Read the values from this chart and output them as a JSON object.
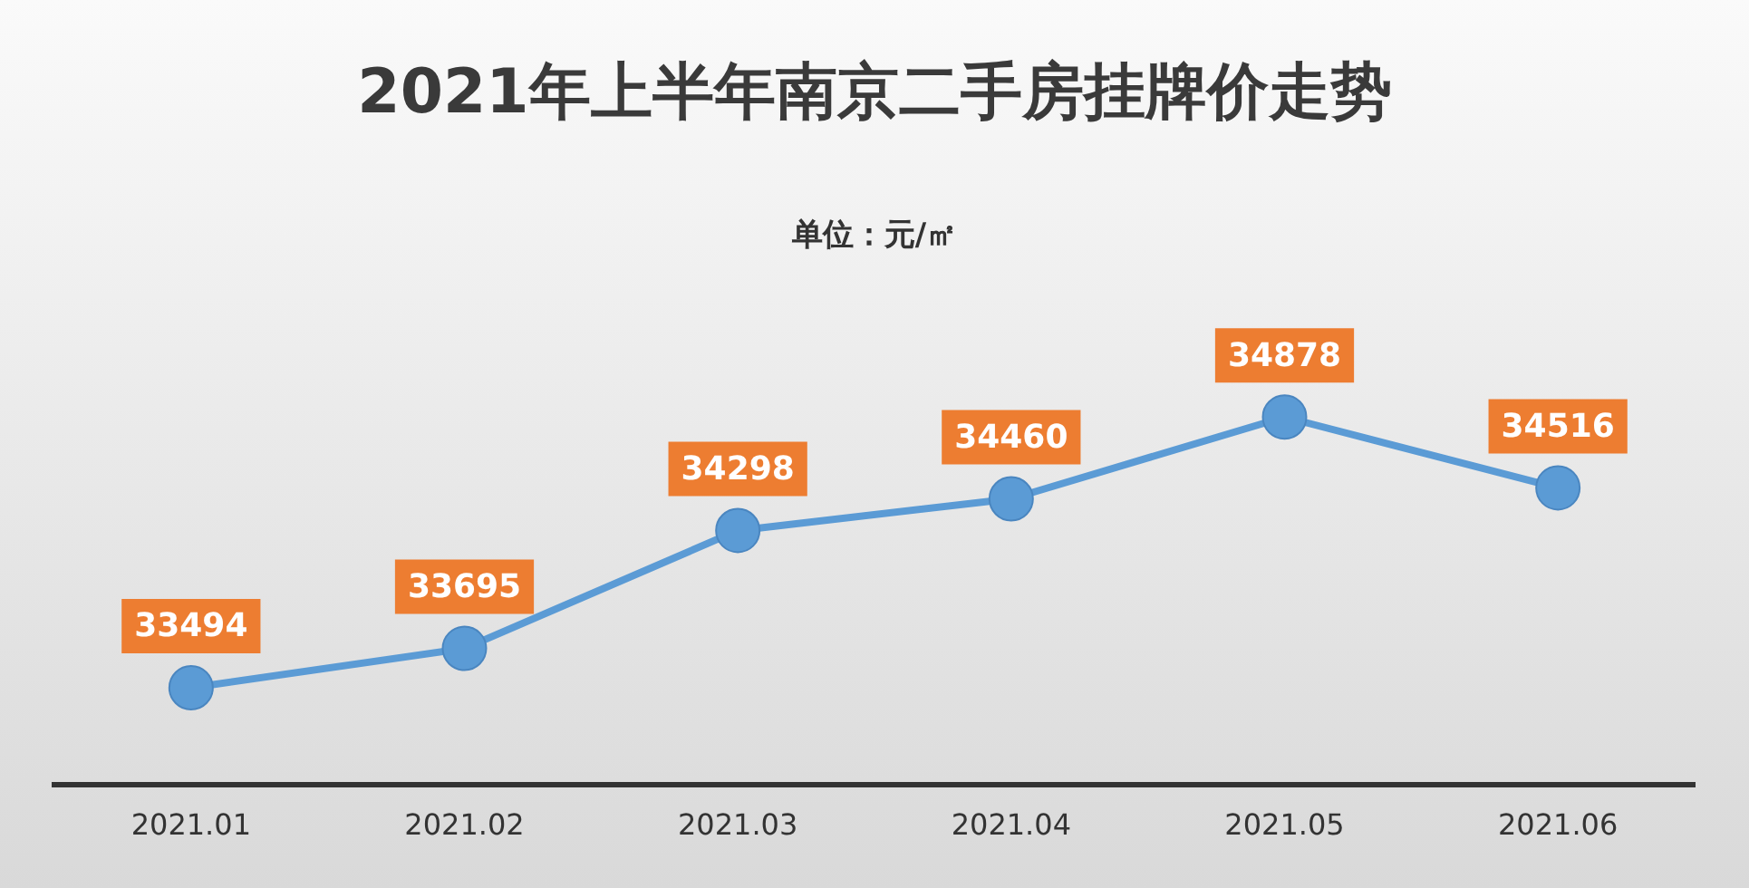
{
  "chart_data": {
    "type": "line",
    "title": "2021年上半年南京二手房挂牌价走势",
    "subtitle": "单位：元/㎡",
    "categories": [
      "2021.01",
      "2021.02",
      "2021.03",
      "2021.04",
      "2021.05",
      "2021.06"
    ],
    "series": [
      {
        "color": "#5b9bd5",
        "values": [
          33494,
          33695,
          34298,
          34460,
          34878,
          34516
        ]
      }
    ],
    "data_labels": true,
    "marker": "circle",
    "line_style": "solid",
    "grid": false,
    "legend": false,
    "tick_labels": "x"
  }
}
